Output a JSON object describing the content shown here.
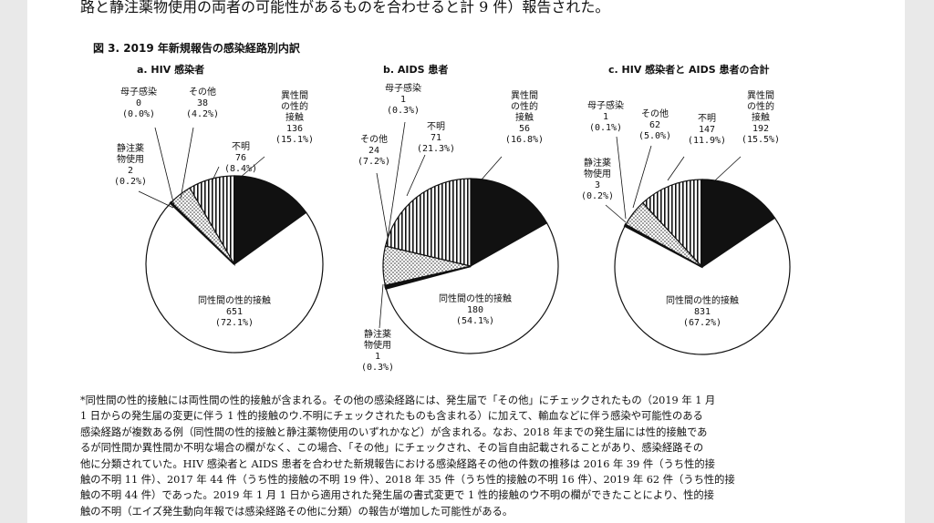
{
  "document": {
    "top_text": "路と静注薬物使用の両者の可能性があるものを合わせると計 9 件）報告された。",
    "figure_title": "図 3.  2019 年新規報告の感染経路別内訳",
    "footnote_lines": [
      "*同性間の性的接触には両性間の性的接触が含まれる。その他の感染経路には、発生届で「その他」にチェックされたもの（2019 年 1 月",
      "1 日からの発生届の変更に伴う 1 性的接触のウ.不明にチェックされたものも含まれる）に加えて、輸血などに伴う感染や可能性のある",
      "感染経路が複数ある例（同性間の性的接触と静注薬物使用のいずれかなど）が含まれる。なお、2018 年までの発生届には性的接触であ",
      "るが同性間か異性間か不明な場合の欄がなく、この場合、「その他」にチェックされ、その旨自由記載されることがあり、感染経路その",
      "他に分類されていた。HIV 感染者と AIDS 患者を合わせた新規報告における感染経路その他の件数の推移は 2016 年 39 件（うち性的接",
      "触の不明 11 件）、2017 年 44 件（うち性的接触の不明 19 件）、2018 年 35 件（うち性的接触の不明 16 件）、2019 年 62 件（うち性的接",
      "触の不明 44 件）であった。2019 年 1 月 1 日から適用された発生届の書式変更で 1 性的接触のウ不明の欄ができたことにより、性的接",
      "触の不明（エイズ発生動向年報では感染経路その他に分類）の報告が増加した可能性がある。"
    ]
  },
  "chart_data": [
    {
      "type": "pie",
      "title": "a.  HIV 感染者",
      "slices": [
        {
          "label": [
            "異性間",
            "の性的",
            "接触"
          ],
          "value": 136,
          "percent": "(15.1%)",
          "fill": "black"
        },
        {
          "label": [
            "同性間の性的接触"
          ],
          "value": 651,
          "percent": "(72.1%)",
          "fill": "white"
        },
        {
          "label": [
            "静注薬",
            "物使用"
          ],
          "value": 2,
          "percent": "(0.2%)",
          "fill": "black"
        },
        {
          "label": [
            "母子感染"
          ],
          "value": 0,
          "percent": "(0.0%)",
          "fill": "black"
        },
        {
          "label": [
            "その他"
          ],
          "value": 38,
          "percent": "(4.2%)",
          "fill": "dots"
        },
        {
          "label": [
            "不明"
          ],
          "value": 76,
          "percent": "(8.4%)",
          "fill": "vstripes"
        }
      ]
    },
    {
      "type": "pie",
      "title": "b.  AIDS 患者",
      "slices": [
        {
          "label": [
            "異性間",
            "の性的",
            "接触"
          ],
          "value": 56,
          "percent": "(16.8%)",
          "fill": "black"
        },
        {
          "label": [
            "同性間の性的接触"
          ],
          "value": 180,
          "percent": "(54.1%)",
          "fill": "white"
        },
        {
          "label": [
            "静注薬",
            "物使用"
          ],
          "value": 1,
          "percent": "(0.3%)",
          "fill": "black"
        },
        {
          "label": [
            "母子感染"
          ],
          "value": 1,
          "percent": "(0.3%)",
          "fill": "black"
        },
        {
          "label": [
            "その他"
          ],
          "value": 24,
          "percent": "(7.2%)",
          "fill": "dots"
        },
        {
          "label": [
            "不明"
          ],
          "value": 71,
          "percent": "(21.3%)",
          "fill": "vstripes"
        }
      ]
    },
    {
      "type": "pie",
      "title": "c.  HIV 感染者と AIDS 患者の合計",
      "slices": [
        {
          "label": [
            "異性間",
            "の性的",
            "接触"
          ],
          "value": 192,
          "percent": "(15.5%)",
          "fill": "black"
        },
        {
          "label": [
            "同性間の性的接触"
          ],
          "value": 831,
          "percent": "(67.2%)",
          "fill": "white"
        },
        {
          "label": [
            "静注薬",
            "物使用"
          ],
          "value": 3,
          "percent": "(0.2%)",
          "fill": "black"
        },
        {
          "label": [
            "母子感染"
          ],
          "value": 1,
          "percent": "(0.1%)",
          "fill": "black"
        },
        {
          "label": [
            "その他"
          ],
          "value": 62,
          "percent": "(5.0%)",
          "fill": "dots"
        },
        {
          "label": [
            "不明"
          ],
          "value": 147,
          "percent": "(11.9%)",
          "fill": "vstripes"
        }
      ]
    }
  ]
}
